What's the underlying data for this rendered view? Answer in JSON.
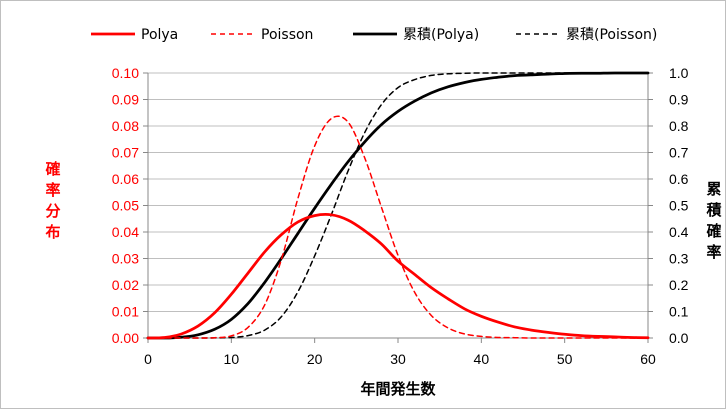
{
  "chart_data": {
    "type": "line",
    "title": "",
    "xlabel": "年間発生数",
    "ylabel_left": "確率分布",
    "ylabel_right": "累積確率",
    "xlim": [
      0,
      60
    ],
    "ylim_left": [
      0,
      0.1
    ],
    "ylim_right": [
      0,
      1.0
    ],
    "x_ticks": [
      "0",
      "10",
      "20",
      "30",
      "40",
      "50",
      "60"
    ],
    "y_left_ticks": [
      "0.00",
      "0.01",
      "0.02",
      "0.03",
      "0.04",
      "0.05",
      "0.06",
      "0.07",
      "0.08",
      "0.09",
      "0.10"
    ],
    "y_right_ticks": [
      "0.0",
      "0.1",
      "0.2",
      "0.3",
      "0.4",
      "0.5",
      "0.6",
      "0.7",
      "0.8",
      "0.9",
      "1.0"
    ],
    "grid": true,
    "legend_position": "top",
    "x": [
      0,
      2,
      4,
      6,
      8,
      10,
      12,
      14,
      16,
      18,
      20,
      22,
      24,
      26,
      28,
      30,
      32,
      34,
      36,
      38,
      40,
      42,
      44,
      46,
      48,
      50,
      52,
      54,
      56,
      58,
      60
    ],
    "series": [
      {
        "name": "Polya",
        "axis": "left",
        "color": "#ff0000",
        "dash": "solid",
        "values": [
          0.0,
          0.0002,
          0.0015,
          0.0045,
          0.0095,
          0.0165,
          0.0245,
          0.0325,
          0.039,
          0.0438,
          0.0462,
          0.0465,
          0.0445,
          0.0405,
          0.0355,
          0.029,
          0.024,
          0.019,
          0.0148,
          0.011,
          0.0082,
          0.006,
          0.0042,
          0.003,
          0.0021,
          0.0014,
          0.0009,
          0.0006,
          0.0004,
          0.0002,
          0.0001
        ]
      },
      {
        "name": "Poisson",
        "axis": "left",
        "color": "#ff0000",
        "dash": "dashed",
        "values": [
          0.0,
          0.0,
          0.0,
          0.0,
          0.0001,
          0.0008,
          0.004,
          0.0125,
          0.0295,
          0.0528,
          0.0725,
          0.0828,
          0.0815,
          0.068,
          0.0495,
          0.0312,
          0.0172,
          0.0085,
          0.0038,
          0.0015,
          0.0006,
          0.0002,
          0.0001,
          0.0,
          0.0,
          0.0,
          0.0,
          0.0,
          0.0,
          0.0,
          0.0
        ]
      },
      {
        "name": "累積(Polya)",
        "axis": "right",
        "color": "#000000",
        "dash": "solid",
        "values": [
          0.0,
          0.0,
          0.003,
          0.012,
          0.033,
          0.07,
          0.13,
          0.21,
          0.3,
          0.395,
          0.49,
          0.58,
          0.665,
          0.74,
          0.805,
          0.855,
          0.894,
          0.925,
          0.948,
          0.964,
          0.976,
          0.984,
          0.99,
          0.993,
          0.996,
          0.998,
          0.999,
          0.999,
          1.0,
          1.0,
          1.0
        ]
      },
      {
        "name": "累積(Poisson)",
        "axis": "right",
        "color": "#000000",
        "dash": "dashed",
        "values": [
          0.0,
          0.0,
          0.0,
          0.0,
          0.0003,
          0.002,
          0.009,
          0.03,
          0.08,
          0.175,
          0.31,
          0.465,
          0.63,
          0.775,
          0.88,
          0.945,
          0.975,
          0.991,
          0.997,
          0.999,
          1.0,
          1.0,
          1.0,
          1.0,
          1.0,
          1.0,
          1.0,
          1.0,
          1.0,
          1.0,
          1.0
        ]
      }
    ]
  }
}
